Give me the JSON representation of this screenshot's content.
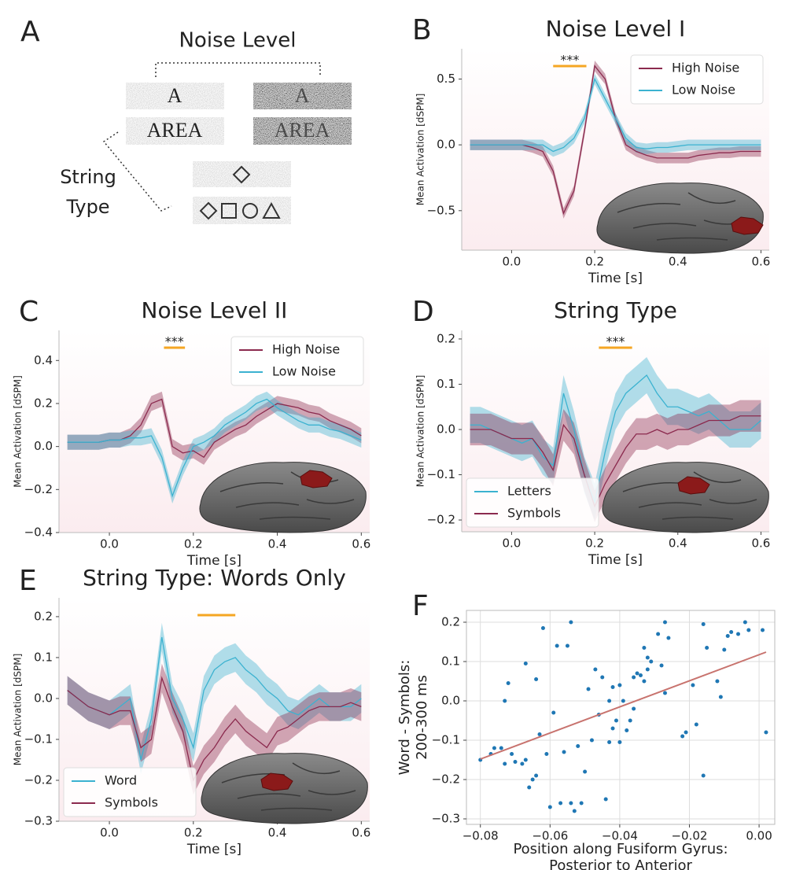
{
  "panel_a": {
    "panel": "A",
    "title": "Noise Level",
    "row_label": [
      "String",
      "Type"
    ],
    "stimuli": [
      "A",
      "AREA"
    ]
  },
  "chart_data": [
    {
      "type": "line",
      "panel": "B",
      "title": "Noise Level I",
      "xlabel": "Time [s]",
      "ylabel": "Mean Activation [dSPM]",
      "x": [
        -0.1,
        -0.075,
        -0.05,
        -0.025,
        0,
        0.025,
        0.05,
        0.075,
        0.1,
        0.125,
        0.15,
        0.175,
        0.2,
        0.225,
        0.25,
        0.275,
        0.3,
        0.325,
        0.35,
        0.375,
        0.4,
        0.425,
        0.45,
        0.475,
        0.5,
        0.525,
        0.55,
        0.575,
        0.6
      ],
      "xlim": [
        -0.12,
        0.62
      ],
      "ylim": [
        -0.8,
        0.73
      ],
      "xticks": [
        {
          "value": 0,
          "label": "0.0"
        },
        0.2,
        0.4,
        0.6
      ],
      "yticks": [
        {
          "value": -0.5,
          "label": "−0.5"
        },
        {
          "value": 0,
          "label": "0.0"
        },
        0.5
      ],
      "legend": "upper right",
      "significance": {
        "label": "***",
        "x": [
          0.1,
          0.18
        ],
        "color": "#f5a623"
      },
      "series": [
        {
          "name": "High Noise",
          "color": "#8b2a4e",
          "error": 0.04,
          "values": [
            0,
            0,
            0,
            0,
            0,
            0,
            -0.02,
            -0.05,
            -0.2,
            -0.52,
            -0.35,
            0.1,
            0.6,
            0.5,
            0.2,
            0,
            -0.05,
            -0.08,
            -0.1,
            -0.1,
            -0.1,
            -0.1,
            -0.08,
            -0.07,
            -0.06,
            -0.06,
            -0.05,
            -0.05,
            -0.05
          ]
        },
        {
          "name": "Low Noise",
          "color": "#3bb2d0",
          "error": 0.04,
          "values": [
            0,
            0,
            0,
            0,
            0,
            0,
            0,
            0,
            -0.05,
            -0.02,
            0.05,
            0.2,
            0.5,
            0.35,
            0.2,
            0.05,
            -0.02,
            -0.03,
            -0.02,
            -0.02,
            -0.01,
            0,
            0,
            0,
            0,
            0,
            0,
            0,
            0
          ]
        }
      ]
    },
    {
      "type": "line",
      "panel": "C",
      "title": "Noise Level II",
      "xlabel": "Time [s]",
      "ylabel": "Mean Activation [dSPM]",
      "x": [
        -0.1,
        -0.075,
        -0.05,
        -0.025,
        0,
        0.025,
        0.05,
        0.075,
        0.1,
        0.125,
        0.15,
        0.175,
        0.2,
        0.225,
        0.25,
        0.275,
        0.3,
        0.325,
        0.35,
        0.375,
        0.4,
        0.425,
        0.45,
        0.475,
        0.5,
        0.525,
        0.55,
        0.575,
        0.6
      ],
      "xlim": [
        -0.12,
        0.62
      ],
      "ylim": [
        -0.4,
        0.54
      ],
      "xticks": [
        {
          "value": 0,
          "label": "0.0"
        },
        0.2,
        0.4,
        0.6
      ],
      "yticks": [
        {
          "value": -0.4,
          "label": "−0.4"
        },
        {
          "value": -0.2,
          "label": "−0.2"
        },
        {
          "value": 0,
          "label": "0.0"
        },
        0.2,
        0.4
      ],
      "legend": "upper right",
      "significance": {
        "label": "***",
        "x": [
          0.13,
          0.18
        ],
        "color": "#f5a623"
      },
      "series": [
        {
          "name": "High Noise",
          "color": "#8b2a4e",
          "error": 0.035,
          "values": [
            0.02,
            0.02,
            0.02,
            0.02,
            0.03,
            0.03,
            0.05,
            0.1,
            0.2,
            0.22,
            0,
            -0.03,
            -0.02,
            -0.05,
            0.02,
            0.05,
            0.08,
            0.1,
            0.14,
            0.17,
            0.2,
            0.19,
            0.18,
            0.16,
            0.15,
            0.12,
            0.1,
            0.08,
            0.05
          ]
        },
        {
          "name": "Low Noise",
          "color": "#3bb2d0",
          "error": 0.035,
          "values": [
            0.02,
            0.02,
            0.02,
            0.02,
            0.03,
            0.03,
            0.04,
            0.04,
            0.05,
            -0.05,
            -0.23,
            -0.1,
            0,
            0.02,
            0.05,
            0.1,
            0.13,
            0.16,
            0.2,
            0.22,
            0.18,
            0.15,
            0.12,
            0.1,
            0.1,
            0.08,
            0.07,
            0.05,
            0.03
          ]
        }
      ]
    },
    {
      "type": "line",
      "panel": "D",
      "title": "String Type",
      "xlabel": "Time [s]",
      "ylabel": "Mean Activation [dSPM]",
      "x": [
        -0.1,
        -0.075,
        -0.05,
        -0.025,
        0,
        0.025,
        0.05,
        0.075,
        0.1,
        0.125,
        0.15,
        0.175,
        0.2,
        0.225,
        0.25,
        0.275,
        0.3,
        0.325,
        0.35,
        0.375,
        0.4,
        0.425,
        0.45,
        0.475,
        0.5,
        0.525,
        0.55,
        0.575,
        0.6
      ],
      "xlim": [
        -0.12,
        0.62
      ],
      "ylim": [
        -0.226,
        0.219
      ],
      "xticks": [
        {
          "value": 0,
          "label": "0.0"
        },
        0.2,
        0.4,
        0.6
      ],
      "yticks": [
        {
          "value": -0.2,
          "label": "−0.2"
        },
        {
          "value": -0.1,
          "label": "−0.1"
        },
        {
          "value": 0,
          "label": "0.0"
        },
        0.1,
        0.2
      ],
      "legend": "lower left",
      "significance": {
        "label": "***",
        "x": [
          0.21,
          0.29
        ],
        "color": "#f5a623"
      },
      "series": [
        {
          "name": "Letters",
          "color": "#3bb2d0",
          "error": 0.04,
          "values": [
            0.01,
            0.01,
            0,
            -0.01,
            -0.02,
            -0.03,
            -0.02,
            -0.06,
            -0.08,
            0.08,
            0,
            -0.1,
            -0.16,
            -0.05,
            0.04,
            0.08,
            0.1,
            0.12,
            0.08,
            0.05,
            0.05,
            0.04,
            0.03,
            0.04,
            0.02,
            0,
            0,
            0,
            0.02
          ]
        },
        {
          "name": "Symbols",
          "color": "#8b2a4e",
          "error": 0.035,
          "values": [
            0,
            0,
            0,
            -0.01,
            -0.02,
            -0.02,
            -0.02,
            -0.05,
            -0.09,
            0.01,
            -0.02,
            -0.1,
            -0.17,
            -0.12,
            -0.08,
            -0.04,
            -0.01,
            -0.01,
            0,
            -0.01,
            0,
            0,
            0.01,
            0.02,
            0.02,
            0.02,
            0.03,
            0.03,
            0.03
          ]
        }
      ]
    },
    {
      "type": "line",
      "panel": "E",
      "title": "String Type: Words Only",
      "xlabel": "Time [s]",
      "ylabel": "Mean Activation [dSPM]",
      "x": [
        -0.1,
        -0.075,
        -0.05,
        -0.025,
        0,
        0.025,
        0.05,
        0.075,
        0.1,
        0.125,
        0.15,
        0.175,
        0.2,
        0.225,
        0.25,
        0.275,
        0.3,
        0.325,
        0.35,
        0.375,
        0.4,
        0.425,
        0.45,
        0.475,
        0.5,
        0.525,
        0.55,
        0.575,
        0.6
      ],
      "xlim": [
        -0.12,
        0.62
      ],
      "ylim": [
        -0.3,
        0.246
      ],
      "xticks": [
        {
          "value": 0,
          "label": "0.0"
        },
        0.2,
        0.4,
        0.6
      ],
      "yticks": [
        {
          "value": -0.3,
          "label": "−0.3"
        },
        {
          "value": -0.2,
          "label": "−0.2"
        },
        {
          "value": -0.1,
          "label": "−0.1"
        },
        {
          "value": 0,
          "label": "0.0"
        },
        0.1,
        0.2
      ],
      "legend": "lower left",
      "significance": {
        "x": [
          0.21,
          0.3
        ],
        "color": "#f5a623"
      },
      "series": [
        {
          "name": "Word",
          "color": "#3bb2d0",
          "error": 0.035,
          "values": [
            0.02,
            0,
            -0.02,
            -0.03,
            -0.04,
            -0.02,
            0,
            -0.15,
            -0.05,
            0.15,
            0,
            -0.05,
            -0.12,
            0.02,
            0.07,
            0.09,
            0.1,
            0.07,
            0.05,
            0.02,
            0,
            -0.03,
            -0.04,
            -0.02,
            0,
            -0.02,
            -0.02,
            -0.02,
            0
          ]
        },
        {
          "name": "Symbols",
          "color": "#8b2a4e",
          "error": 0.035,
          "values": [
            0.02,
            0,
            -0.02,
            -0.03,
            -0.04,
            -0.03,
            -0.03,
            -0.12,
            -0.1,
            0.05,
            -0.02,
            -0.08,
            -0.2,
            -0.15,
            -0.12,
            -0.08,
            -0.05,
            -0.08,
            -0.1,
            -0.12,
            -0.08,
            -0.07,
            -0.05,
            -0.03,
            -0.02,
            -0.02,
            -0.02,
            -0.01,
            -0.02
          ]
        }
      ]
    },
    {
      "type": "scatter",
      "panel": "F",
      "xlabel": [
        "Position along Fusiform Gyrus:",
        "Posterior to Anterior"
      ],
      "ylabel": [
        "Word - Symbols:",
        "200-300 ms"
      ],
      "xlim": [
        -0.084,
        0.0045
      ],
      "ylim": [
        -0.314,
        0.23
      ],
      "xticks": [
        {
          "value": -0.08,
          "label": "−0.08"
        },
        {
          "value": -0.06,
          "label": "−0.06"
        },
        {
          "value": -0.04,
          "label": "−0.04"
        },
        {
          "value": -0.02,
          "label": "−0.02"
        },
        {
          "value": 0,
          "label": "0.00"
        }
      ],
      "yticks": [
        {
          "value": -0.3,
          "label": "−0.3"
        },
        {
          "value": -0.2,
          "label": "−0.2"
        },
        {
          "value": -0.1,
          "label": "−0.1"
        },
        {
          "value": 0,
          "label": "0.0"
        },
        0.1,
        0.2
      ],
      "grid": true,
      "color": "#1f77b4",
      "x": [
        -0.08,
        -0.077,
        -0.076,
        -0.074,
        -0.073,
        -0.073,
        -0.072,
        -0.071,
        -0.07,
        -0.068,
        -0.067,
        -0.067,
        -0.066,
        -0.065,
        -0.064,
        -0.064,
        -0.063,
        -0.062,
        -0.061,
        -0.06,
        -0.059,
        -0.058,
        -0.057,
        -0.056,
        -0.055,
        -0.054,
        -0.054,
        -0.053,
        -0.052,
        -0.051,
        -0.05,
        -0.049,
        -0.048,
        -0.047,
        -0.046,
        -0.045,
        -0.044,
        -0.043,
        -0.043,
        -0.042,
        -0.042,
        -0.041,
        -0.04,
        -0.04,
        -0.039,
        -0.038,
        -0.037,
        -0.036,
        -0.036,
        -0.035,
        -0.034,
        -0.033,
        -0.033,
        -0.032,
        -0.032,
        -0.031,
        -0.029,
        -0.028,
        -0.027,
        -0.027,
        -0.026,
        -0.022,
        -0.021,
        -0.019,
        -0.018,
        -0.016,
        -0.016,
        -0.015,
        -0.012,
        -0.011,
        -0.01,
        -0.009,
        -0.008,
        -0.006,
        -0.004,
        -0.003,
        0.001,
        0.002
      ],
      "values": [
        -0.15,
        -0.135,
        -0.12,
        -0.12,
        -0.16,
        0,
        0.045,
        -0.135,
        -0.155,
        -0.16,
        -0.15,
        0.095,
        -0.22,
        -0.2,
        0.055,
        -0.19,
        -0.085,
        0.185,
        -0.135,
        -0.27,
        -0.03,
        0.14,
        -0.26,
        -0.13,
        0.14,
        -0.26,
        0.2,
        -0.28,
        -0.115,
        -0.26,
        -0.18,
        0.03,
        -0.1,
        0.08,
        -0.035,
        0.06,
        -0.25,
        -0.105,
        0,
        0.035,
        -0.07,
        -0.05,
        0.04,
        -0.105,
        0,
        -0.075,
        -0.05,
        0.06,
        -0.02,
        0.07,
        0.065,
        0.135,
        0.05,
        0.11,
        0.08,
        0.1,
        0.17,
        0.09,
        0.2,
        0.02,
        0.16,
        -0.09,
        -0.08,
        0.04,
        -0.06,
        0.195,
        -0.19,
        0.135,
        0.05,
        0.01,
        0.13,
        0.165,
        0.175,
        0.17,
        0.2,
        0.18,
        0.18,
        -0.08
      ],
      "fit_line": {
        "x": [
          -0.08,
          0.002
        ],
        "values": [
          -0.148,
          0.124
        ],
        "color": "#c8736e"
      }
    }
  ]
}
